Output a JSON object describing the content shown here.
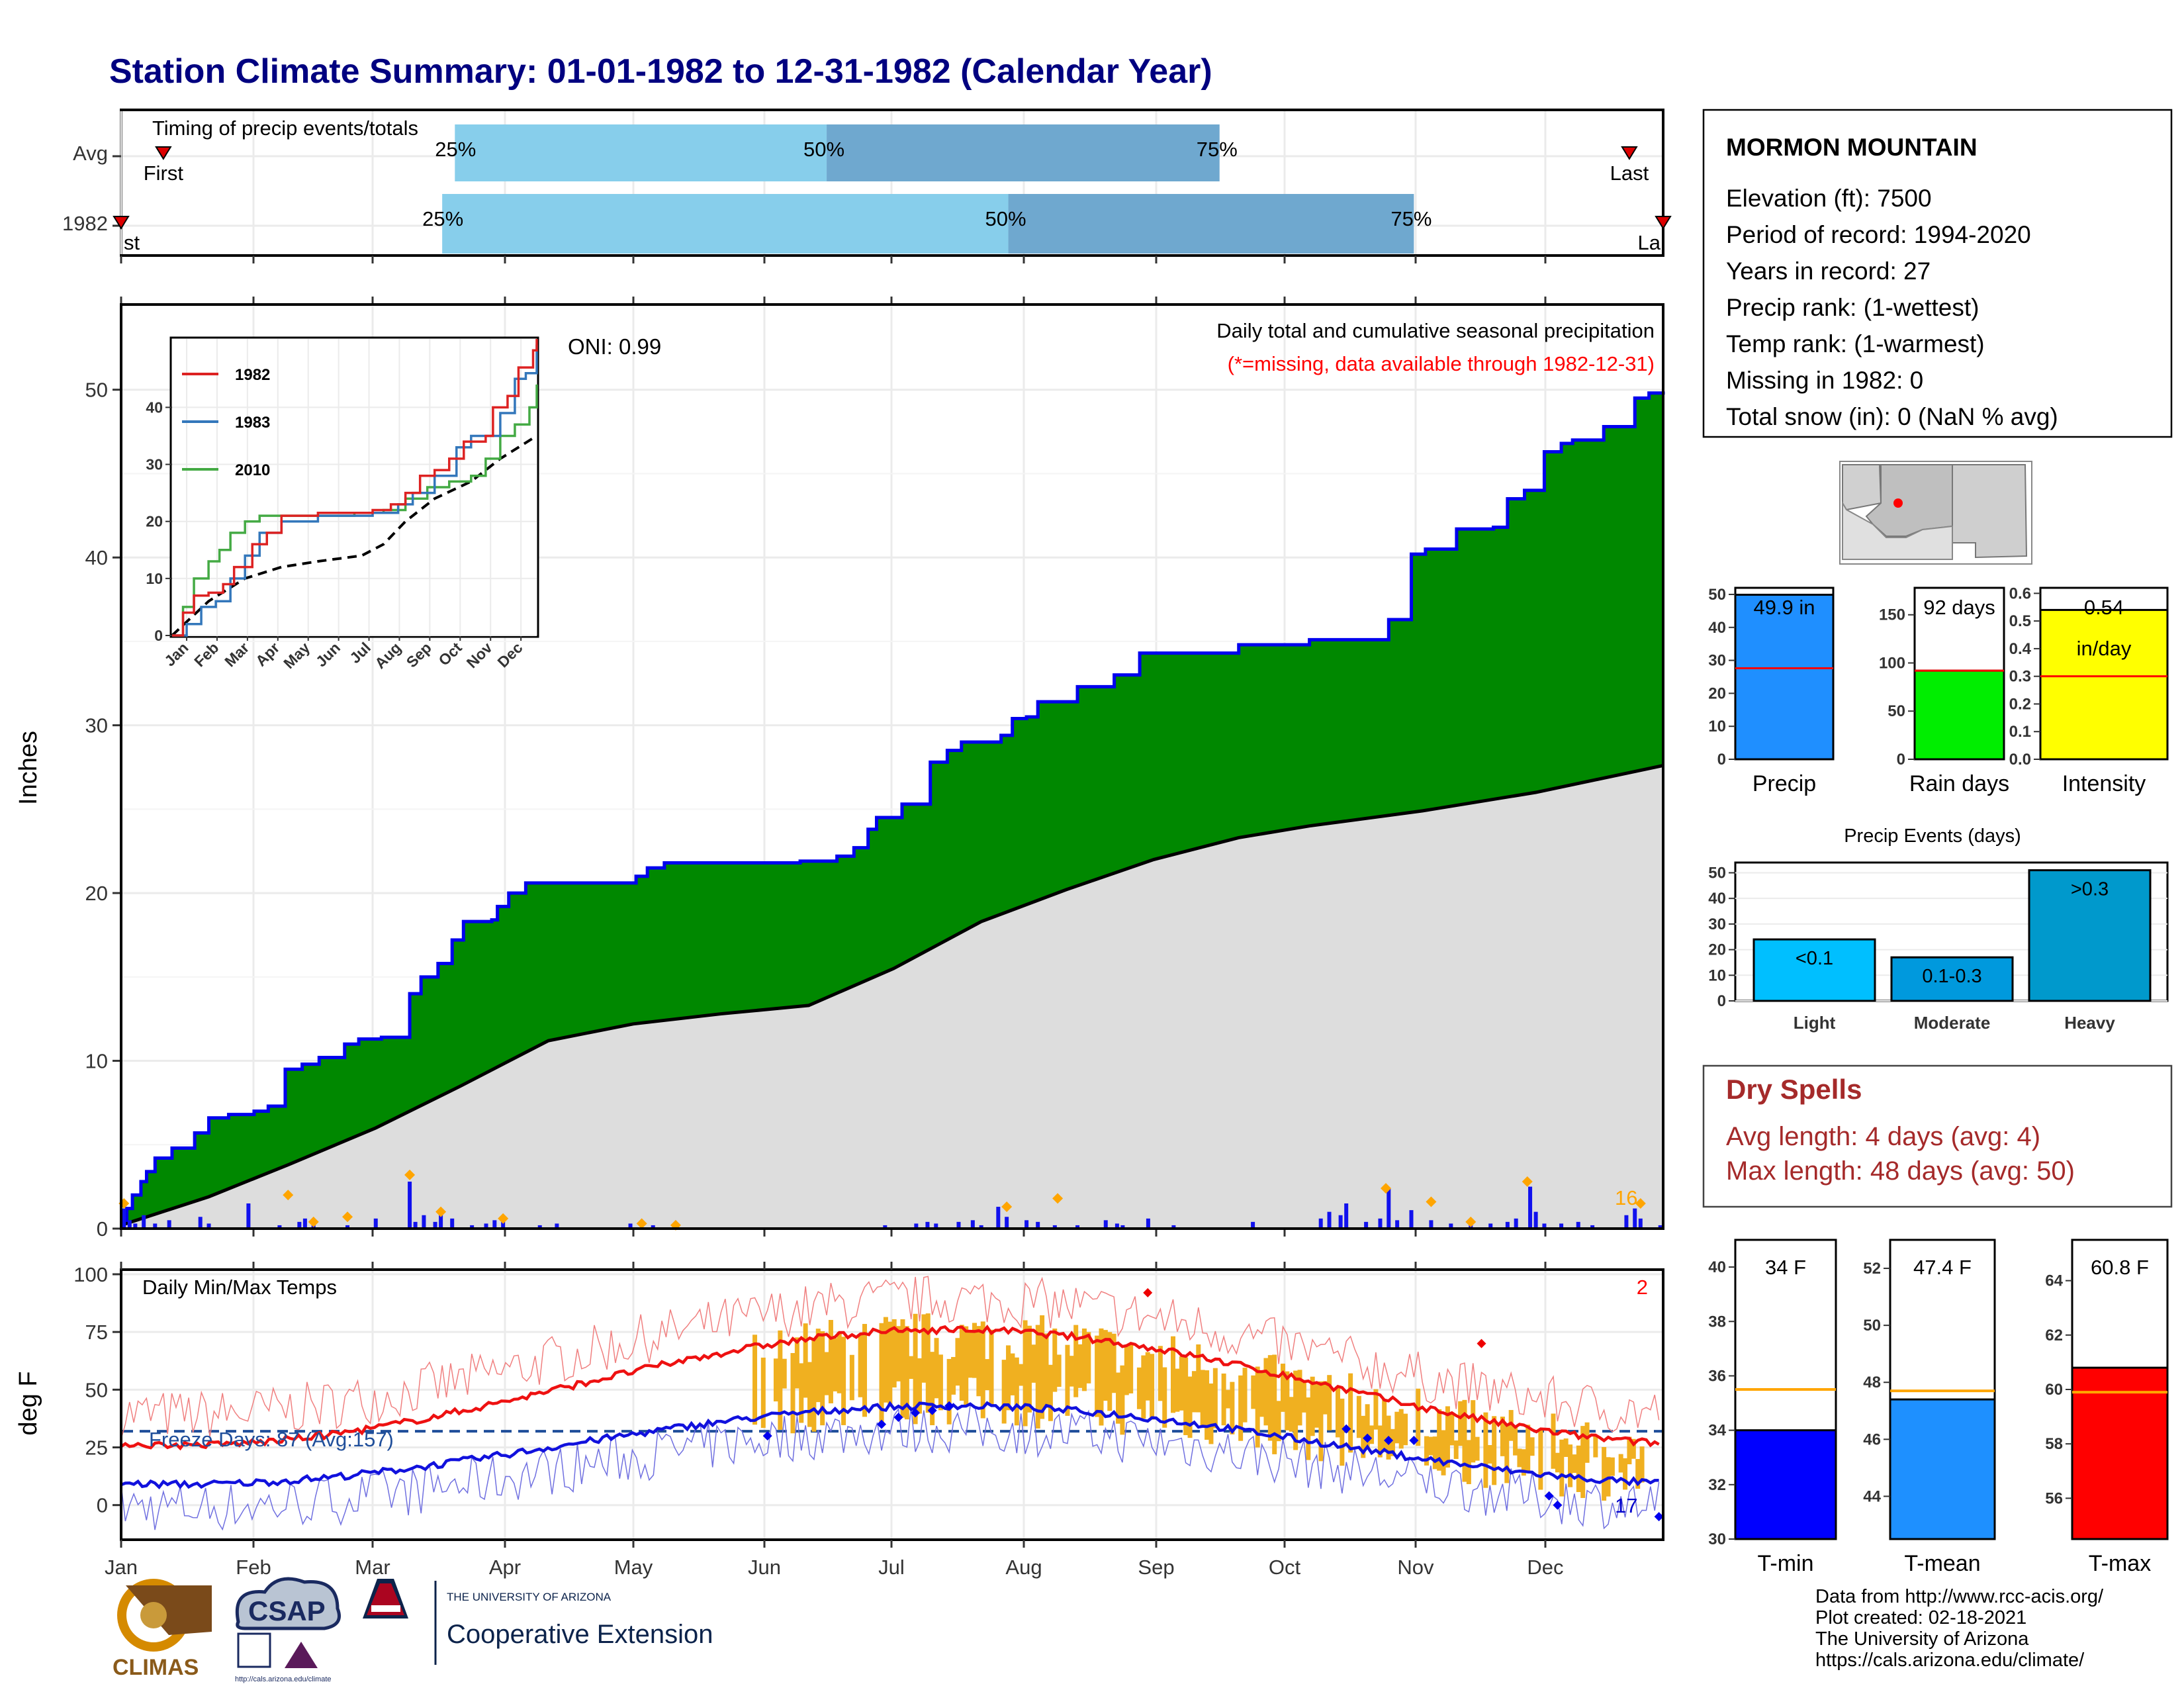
{
  "title": "Station Climate Summary: 01-01-1982 to 12-31-1982 (Calendar Year)",
  "timing": {
    "label": "Timing of precip events/totals",
    "rows": [
      {
        "name": "Avg",
        "first_day": 10,
        "q25": 79,
        "q50": 167,
        "q75": 260,
        "last_day": 357,
        "first_label": "First",
        "last_label": "Last"
      },
      {
        "name": "1982",
        "first_day": 0,
        "q25": 76,
        "q50": 210,
        "q75": 306,
        "last_day": 365,
        "first_label": "First",
        "last_label": "Last"
      }
    ],
    "pct_labels": [
      "25%",
      "50%",
      "75%"
    ]
  },
  "precip_chart": {
    "ylabel": "Inches",
    "ylim": [
      0,
      55
    ],
    "yticks": [
      0,
      10,
      20,
      30,
      40,
      50
    ],
    "months": [
      "Jan",
      "Feb",
      "Mar",
      "Apr",
      "May",
      "Jun",
      "Jul",
      "Aug",
      "Sep",
      "Oct",
      "Nov",
      "Dec"
    ],
    "oni": "ONI: 0.99",
    "title": "Daily total and cumulative seasonal precipitation",
    "missing_note": "(*=missing, data available through 1982-12-31)",
    "max_daily_label": "16",
    "colors": {
      "cum": "#008800",
      "cum_line": "#0000ee",
      "avg": "#dddddd",
      "daily": "#1111ee",
      "marker": "#ffa500",
      "missing": "#ff0000"
    },
    "cumulative_steps": [
      [
        0,
        0.5
      ],
      [
        2,
        1.2
      ],
      [
        4,
        2.0
      ],
      [
        7,
        2.8
      ],
      [
        9,
        3.4
      ],
      [
        12,
        4.2
      ],
      [
        18,
        4.8
      ],
      [
        26,
        5.7
      ],
      [
        31,
        6.6
      ],
      [
        38,
        6.8
      ],
      [
        47,
        7.0
      ],
      [
        52,
        7.3
      ],
      [
        58,
        9.5
      ],
      [
        64,
        9.8
      ],
      [
        70,
        10.2
      ],
      [
        79,
        11.0
      ],
      [
        84,
        11.3
      ],
      [
        92,
        11.4
      ],
      [
        102,
        14.0
      ],
      [
        106,
        15.0
      ],
      [
        112,
        15.8
      ],
      [
        117,
        17.2
      ],
      [
        121,
        18.3
      ],
      [
        131,
        18.4
      ],
      [
        133,
        19.2
      ],
      [
        137,
        20.0
      ],
      [
        143,
        20.6
      ],
      [
        180,
        20.6
      ],
      [
        182,
        21.0
      ],
      [
        186,
        21.5
      ],
      [
        192,
        21.8
      ],
      [
        240,
        21.9
      ],
      [
        253,
        22.2
      ],
      [
        259,
        22.7
      ],
      [
        264,
        23.8
      ],
      [
        267,
        24.5
      ],
      [
        276,
        25.3
      ],
      [
        286,
        27.8
      ],
      [
        292,
        28.5
      ],
      [
        297,
        29.0
      ],
      [
        311,
        29.4
      ],
      [
        315,
        30.4
      ],
      [
        320,
        30.5
      ],
      [
        324,
        31.4
      ],
      [
        338,
        32.3
      ],
      [
        351,
        33.0
      ],
      [
        360,
        34.3
      ],
      [
        388,
        34.3
      ],
      [
        395,
        34.8
      ],
      [
        420,
        35.1
      ],
      [
        445,
        35.1
      ],
      [
        448,
        36.3
      ],
      [
        456,
        40.2
      ],
      [
        461,
        40.5
      ],
      [
        472,
        41.7
      ],
      [
        485,
        41.8
      ],
      [
        490,
        43.5
      ],
      [
        496,
        44.0
      ],
      [
        503,
        46.3
      ],
      [
        509,
        46.8
      ],
      [
        513,
        47.0
      ],
      [
        524,
        47.8
      ],
      [
        535,
        49.5
      ],
      [
        540,
        49.8
      ],
      [
        545,
        49.9
      ]
    ],
    "cumulative_days_note": "step x values in day of year (0-365), scaled",
    "avg_points": [
      [
        0,
        0.2
      ],
      [
        31,
        1.9
      ],
      [
        59,
        3.8
      ],
      [
        90,
        6.0
      ],
      [
        120,
        8.5
      ],
      [
        151,
        11.2
      ],
      [
        181,
        12.2
      ],
      [
        212,
        12.8
      ],
      [
        243,
        13.3
      ],
      [
        273,
        15.5
      ],
      [
        304,
        18.3
      ],
      [
        334,
        20.2
      ],
      [
        365,
        22.0
      ],
      [
        395,
        23.3
      ],
      [
        420,
        24.0
      ],
      [
        460,
        24.9
      ],
      [
        500,
        26.0
      ],
      [
        545,
        27.6
      ]
    ],
    "daily_bars": [
      [
        1,
        1.2
      ],
      [
        3,
        0.5
      ],
      [
        5,
        0.3
      ],
      [
        8,
        0.8
      ],
      [
        12,
        0.3
      ],
      [
        17,
        0.5
      ],
      [
        28,
        0.7
      ],
      [
        31,
        0.3
      ],
      [
        45,
        1.5
      ],
      [
        56,
        0.2
      ],
      [
        63,
        0.4
      ],
      [
        65,
        0.6
      ],
      [
        68,
        0.2
      ],
      [
        80,
        0.2
      ],
      [
        90,
        0.6
      ],
      [
        102,
        2.8
      ],
      [
        104,
        0.4
      ],
      [
        107,
        0.8
      ],
      [
        111,
        0.4
      ],
      [
        113,
        1.1
      ],
      [
        117,
        0.6
      ],
      [
        124,
        0.2
      ],
      [
        129,
        0.3
      ],
      [
        132,
        0.5
      ],
      [
        135,
        0.4
      ],
      [
        148,
        0.2
      ],
      [
        154,
        0.3
      ],
      [
        180,
        0.3
      ],
      [
        188,
        0.2
      ],
      [
        270,
        0.2
      ],
      [
        281,
        0.3
      ],
      [
        285,
        0.4
      ],
      [
        288,
        0.3
      ],
      [
        296,
        0.4
      ],
      [
        301,
        0.5
      ],
      [
        304,
        0.2
      ],
      [
        310,
        1.3
      ],
      [
        313,
        0.7
      ],
      [
        320,
        0.5
      ],
      [
        324,
        0.4
      ],
      [
        330,
        0.2
      ],
      [
        338,
        0.2
      ],
      [
        348,
        0.5
      ],
      [
        352,
        0.3
      ],
      [
        354,
        0.2
      ],
      [
        363,
        0.6
      ],
      [
        372,
        0.2
      ],
      [
        400,
        0.4
      ],
      [
        424,
        0.6
      ],
      [
        427,
        1.0
      ],
      [
        431,
        0.8
      ],
      [
        433,
        1.5
      ],
      [
        440,
        0.4
      ],
      [
        445,
        0.6
      ],
      [
        448,
        2.4
      ],
      [
        451,
        0.5
      ],
      [
        456,
        1.1
      ],
      [
        463,
        0.5
      ],
      [
        470,
        0.3
      ],
      [
        477,
        0.2
      ],
      [
        484,
        0.3
      ],
      [
        490,
        0.4
      ],
      [
        493,
        0.6
      ],
      [
        498,
        2.5
      ],
      [
        500,
        1.0
      ],
      [
        503,
        0.3
      ],
      [
        509,
        0.3
      ],
      [
        515,
        0.4
      ],
      [
        520,
        0.2
      ],
      [
        532,
        0.8
      ],
      [
        535,
        1.2
      ],
      [
        537,
        0.6
      ],
      [
        544,
        0.2
      ]
    ],
    "markers": [
      [
        1,
        1.5
      ],
      [
        59,
        2.0
      ],
      [
        68,
        0.4
      ],
      [
        80,
        0.7
      ],
      [
        102,
        3.2
      ],
      [
        113,
        1.0
      ],
      [
        135,
        0.6
      ],
      [
        184,
        0.3
      ],
      [
        196,
        0.2
      ],
      [
        313,
        1.3
      ],
      [
        331,
        1.8
      ],
      [
        447,
        2.4
      ],
      [
        463,
        1.6
      ],
      [
        477,
        0.4
      ],
      [
        497,
        2.8
      ],
      [
        537,
        1.5
      ]
    ]
  },
  "inset": {
    "series": [
      {
        "name": "1982",
        "color": "#dd2222"
      },
      {
        "name": "1983",
        "color": "#3377bb"
      },
      {
        "name": "2010",
        "color": "#44aa44"
      }
    ],
    "yticks": [
      0,
      10,
      20,
      30,
      40
    ],
    "months": [
      "Jan",
      "Feb",
      "Mar",
      "Apr",
      "May",
      "Jun",
      "Jul",
      "Aug",
      "Sep",
      "Oct",
      "Nov",
      "Dec"
    ],
    "avg_dash_color": "#000000"
  },
  "temp_chart": {
    "ylabel": "deg F",
    "label": "Daily Min/Max Temps",
    "count_label": "2",
    "freeze_label": "Freeze Days: 87 (Avg:157)",
    "min_count_label": "17",
    "yticks": [
      0,
      25,
      50,
      75,
      100
    ],
    "ylim": [
      -15,
      102
    ],
    "freeze_line": 32,
    "colors": {
      "max": "#ee1111",
      "min": "#1111dd",
      "bar": "#f0b020",
      "freeze": "#1f4e9a"
    }
  },
  "station": {
    "name": "MORMON MOUNTAIN",
    "lines": [
      "Elevation (ft): 7500",
      "Period of record: 1994-2020",
      "Years in record: 27",
      "Precip rank:  (1-wettest)",
      "Temp rank:  (1-warmest)",
      "Missing in 1982: 0",
      "Total snow (in): 0 (NaN % avg)"
    ]
  },
  "summary_bars": [
    {
      "label": "Precip",
      "value": 49.9,
      "avg": 27.6,
      "text": "49.9 in",
      "color": "#1f8fff",
      "ylim": [
        0,
        52
      ],
      "yticks": [
        0,
        10,
        20,
        30,
        40,
        50
      ],
      "tick_labels": [
        "0",
        "10",
        "20",
        "30",
        "40",
        "50"
      ]
    },
    {
      "label": "Rain days",
      "value": 92,
      "avg": 92,
      "text": "92 days",
      "color": "#00ee00",
      "ylim": [
        0,
        178
      ],
      "yticks": [
        0,
        50,
        100,
        150
      ],
      "tick_labels": [
        "0",
        "50",
        "100",
        "150"
      ]
    },
    {
      "label": "Intensity",
      "value": 0.54,
      "avg": 0.3,
      "text": "0.54",
      "text2": "in/day",
      "color": "#ffff00",
      "ylim": [
        0,
        0.62
      ],
      "yticks": [
        0,
        0.1,
        0.2,
        0.3,
        0.4,
        0.5,
        0.6
      ],
      "tick_labels": [
        "0.0",
        "0.1",
        "0.2",
        "0.3",
        "0.4",
        "0.5",
        "0.6"
      ]
    }
  ],
  "events": {
    "title": "Precip Events (days)",
    "categories": [
      "Light",
      "Moderate",
      "Heavy"
    ],
    "labels": [
      "<0.1",
      "0.1-0.3",
      ">0.3"
    ],
    "values": [
      24,
      17,
      51
    ],
    "colors": [
      "#00bfff",
      "#0099dd",
      "#0099cc"
    ],
    "yticks": [
      0,
      10,
      20,
      30,
      40,
      50
    ],
    "ylim": [
      0,
      54
    ]
  },
  "dry_spells": {
    "title": "Dry Spells",
    "avg": "Avg length: 4 days (avg: 4)",
    "max": "Max length: 48 days (avg: 50)"
  },
  "temp_bars": [
    {
      "label": "T-min",
      "value": 34.0,
      "avg": 35.5,
      "text": "34 F",
      "color": "#0000ff",
      "ylim": [
        30,
        41
      ],
      "yticks": [
        30,
        32,
        34,
        36,
        38,
        40
      ]
    },
    {
      "label": "T-mean",
      "value": 47.4,
      "avg": 47.7,
      "text": "47.4 F",
      "color": "#1e90ff",
      "ylim": [
        42.5,
        53
      ],
      "yticks": [
        44,
        46,
        48,
        50,
        52
      ]
    },
    {
      "label": "T-max",
      "value": 60.8,
      "avg": 59.9,
      "text": "60.8 F",
      "color": "#ff0000",
      "ylim": [
        54.5,
        65.5
      ],
      "yticks": [
        56,
        58,
        60,
        62,
        64
      ]
    }
  ],
  "footer": {
    "lines": [
      "Data from http://www.rcc-acis.org/",
      "Plot created: 02-18-2021",
      "The University of Arizona",
      "https://cals.arizona.edu/climate/"
    ],
    "logos": {
      "climas": "CLIMAS",
      "csap": "CSAP",
      "csap_url": "http://cals.arizona.edu/climate",
      "ua_small": "THE UNIVERSITY OF ARIZONA",
      "ua_big": "Cooperative Extension"
    }
  }
}
